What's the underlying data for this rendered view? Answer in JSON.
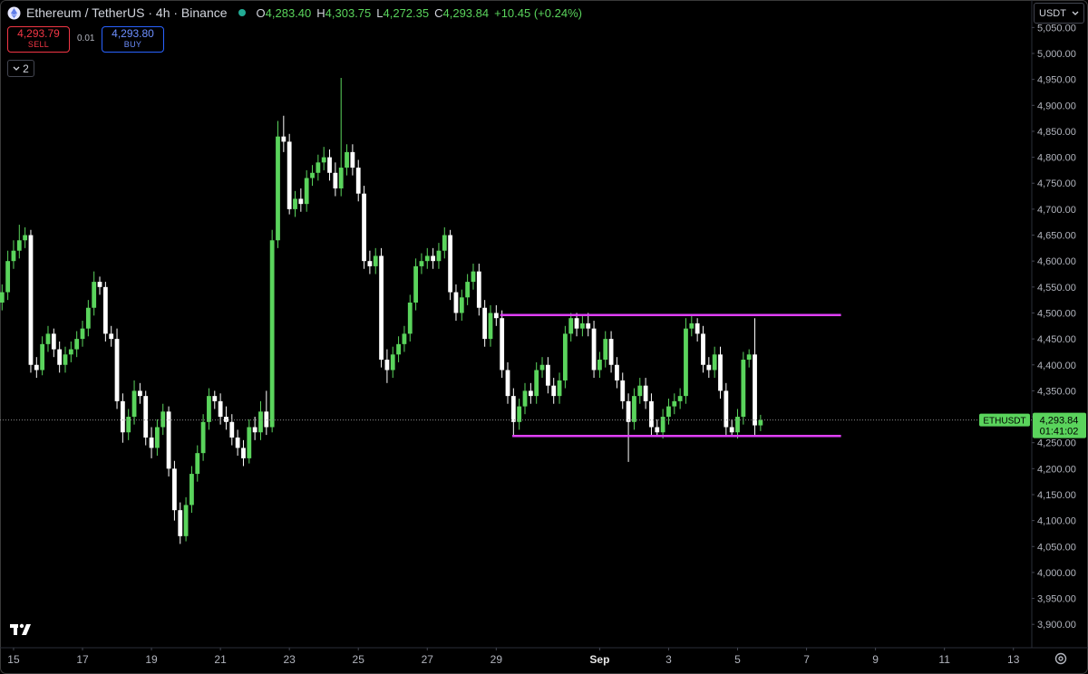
{
  "header": {
    "symbol_title": "Ethereum / TetherUS · 4h · Binance",
    "ohlc": [
      {
        "key": "O",
        "value": "4,283.40"
      },
      {
        "key": "H",
        "value": "4,303.75"
      },
      {
        "key": "L",
        "value": "4,272.35"
      },
      {
        "key": "C",
        "value": "4,293.84"
      }
    ],
    "change": "+10.45 (+0.24%)"
  },
  "trade": {
    "sell_price": "4,293.79",
    "sell_label": "SELL",
    "spread": "0.01",
    "buy_price": "4,293.80",
    "buy_label": "BUY"
  },
  "indicators_toggle": "2",
  "currency": "USDT",
  "chart_data": {
    "type": "candlestick",
    "series": [
      {
        "name": "ETHUSDT",
        "up_color": "#5ad45c",
        "down_color": "#ffffff",
        "open": [
          4520,
          4540,
          4600,
          4620,
          4640,
          4650,
          4400,
          4390,
          4440,
          4460,
          4430,
          4400,
          4420,
          4430,
          4450,
          4470,
          4510,
          4560,
          4550,
          4460,
          4450,
          4330,
          4270,
          4300,
          4350,
          4340,
          4260,
          4240,
          4280,
          4310,
          4200,
          4120,
          4070,
          4130,
          4190,
          4230,
          4290,
          4340,
          4330,
          4300,
          4290,
          4260,
          4240,
          4220,
          4280,
          4270,
          4310,
          4280,
          4640,
          4840,
          4830,
          4700,
          4720,
          4710,
          4760,
          4770,
          4790,
          4800,
          4770,
          4740,
          4780,
          4810,
          4780,
          4730,
          4600,
          4590,
          4610,
          4410,
          4390,
          4420,
          4440,
          4460,
          4520,
          4590,
          4600,
          4610,
          4600,
          4620,
          4650,
          4540,
          4500,
          4530,
          4560,
          4580,
          4510,
          4450,
          4500,
          4490,
          4390,
          4340,
          4290,
          4320,
          4350,
          4340,
          4390,
          4400,
          4360,
          4340,
          4370,
          4460,
          4490,
          4470,
          4480,
          4470,
          4390,
          4410,
          4450,
          4400,
          4370,
          4330,
          4290,
          4340,
          4360,
          4330,
          4280,
          4270,
          4300,
          4320,
          4330,
          4340,
          4470,
          4480,
          4460,
          4400,
          4390,
          4420,
          4350,
          4280,
          4270,
          4300,
          4410,
          4420,
          4283.4
        ],
        "high": [
          4555,
          4620,
          4640,
          4670,
          4665,
          4660,
          4415,
          4455,
          4475,
          4470,
          4445,
          4435,
          4445,
          4465,
          4485,
          4525,
          4580,
          4570,
          4560,
          4475,
          4470,
          4345,
          4315,
          4370,
          4365,
          4350,
          4280,
          4295,
          4325,
          4320,
          4215,
          4135,
          4145,
          4205,
          4245,
          4305,
          4355,
          4350,
          4345,
          4320,
          4305,
          4275,
          4255,
          4295,
          4300,
          4330,
          4350,
          4660,
          4870,
          4880,
          4845,
          4735,
          4740,
          4775,
          4785,
          4805,
          4820,
          4815,
          4790,
          4953,
          4825,
          4825,
          4795,
          4745,
          4620,
          4625,
          4625,
          4430,
          4435,
          4455,
          4475,
          4535,
          4605,
          4615,
          4625,
          4625,
          4635,
          4665,
          4660,
          4555,
          4545,
          4575,
          4595,
          4595,
          4525,
          4515,
          4515,
          4505,
          4405,
          4355,
          4335,
          4365,
          4365,
          4405,
          4415,
          4415,
          4375,
          4385,
          4475,
          4500,
          4500,
          4495,
          4500,
          4485,
          4425,
          4465,
          4465,
          4415,
          4385,
          4345,
          4355,
          4375,
          4375,
          4345,
          4295,
          4315,
          4335,
          4345,
          4355,
          4490,
          4495,
          4490,
          4475,
          4415,
          4435,
          4435,
          4365,
          4295,
          4315,
          4425,
          4430,
          4490,
          4303.75
        ],
        "low": [
          4505,
          4525,
          4585,
          4605,
          4625,
          4385,
          4375,
          4380,
          4425,
          4415,
          4385,
          4385,
          4405,
          4415,
          4435,
          4455,
          4495,
          4535,
          4445,
          4435,
          4315,
          4250,
          4255,
          4285,
          4325,
          4245,
          4220,
          4225,
          4265,
          4185,
          4100,
          4055,
          4060,
          4115,
          4175,
          4215,
          4275,
          4315,
          4285,
          4275,
          4245,
          4225,
          4205,
          4210,
          4255,
          4255,
          4265,
          4270,
          4625,
          4810,
          4690,
          4685,
          4695,
          4695,
          4745,
          4755,
          4775,
          4755,
          4725,
          4725,
          4765,
          4765,
          4715,
          4585,
          4575,
          4575,
          4395,
          4365,
          4375,
          4405,
          4425,
          4445,
          4505,
          4575,
          4585,
          4585,
          4585,
          4605,
          4525,
          4485,
          4485,
          4515,
          4545,
          4495,
          4435,
          4435,
          4475,
          4375,
          4325,
          4262,
          4275,
          4305,
          4325,
          4325,
          4375,
          4345,
          4325,
          4325,
          4355,
          4445,
          4455,
          4455,
          4455,
          4375,
          4375,
          4395,
          4385,
          4355,
          4315,
          4213,
          4275,
          4325,
          4315,
          4265,
          4262,
          4258,
          4285,
          4305,
          4315,
          4325,
          4455,
          4445,
          4385,
          4375,
          4375,
          4335,
          4265,
          4262,
          4258,
          4285,
          4395,
          4262,
          4272.35
        ],
        "close": [
          4540,
          4600,
          4620,
          4640,
          4650,
          4400,
          4390,
          4440,
          4460,
          4430,
          4400,
          4420,
          4430,
          4450,
          4470,
          4510,
          4560,
          4550,
          4460,
          4450,
          4330,
          4270,
          4300,
          4350,
          4340,
          4260,
          4240,
          4280,
          4310,
          4200,
          4120,
          4070,
          4130,
          4190,
          4230,
          4290,
          4340,
          4330,
          4300,
          4290,
          4260,
          4240,
          4220,
          4280,
          4270,
          4310,
          4280,
          4640,
          4840,
          4830,
          4700,
          4720,
          4710,
          4760,
          4770,
          4790,
          4800,
          4770,
          4740,
          4780,
          4810,
          4780,
          4730,
          4600,
          4590,
          4610,
          4410,
          4390,
          4420,
          4440,
          4460,
          4520,
          4590,
          4600,
          4610,
          4600,
          4620,
          4650,
          4540,
          4500,
          4530,
          4560,
          4580,
          4510,
          4450,
          4500,
          4490,
          4390,
          4340,
          4290,
          4320,
          4350,
          4340,
          4390,
          4400,
          4360,
          4340,
          4370,
          4460,
          4490,
          4470,
          4480,
          4470,
          4390,
          4410,
          4450,
          4400,
          4370,
          4330,
          4290,
          4340,
          4360,
          4330,
          4280,
          4270,
          4300,
          4320,
          4330,
          4340,
          4470,
          4480,
          4460,
          4400,
          4390,
          4420,
          4350,
          4280,
          4270,
          4300,
          4410,
          4420,
          4283.4,
          4293.84
        ]
      }
    ],
    "xlim": [
      -0.36,
      179.2
    ],
    "xticks": [
      {
        "value": 2,
        "label": "15"
      },
      {
        "value": 14,
        "label": "17"
      },
      {
        "value": 26,
        "label": "19"
      },
      {
        "value": 38,
        "label": "21"
      },
      {
        "value": 50,
        "label": "23"
      },
      {
        "value": 62,
        "label": "25"
      },
      {
        "value": 74,
        "label": "27"
      },
      {
        "value": 86,
        "label": "29"
      },
      {
        "value": 104,
        "label": "Sep"
      },
      {
        "value": 116,
        "label": "3"
      },
      {
        "value": 128,
        "label": "5"
      },
      {
        "value": 140,
        "label": "7"
      },
      {
        "value": 152,
        "label": "9"
      },
      {
        "value": 164,
        "label": "11"
      },
      {
        "value": 176,
        "label": "13"
      }
    ],
    "ylim": [
      3855,
      5103
    ],
    "yticks": [
      {
        "value": 3900,
        "label": "3,900.00"
      },
      {
        "value": 3950,
        "label": "3,950.00"
      },
      {
        "value": 4000,
        "label": "4,000.00"
      },
      {
        "value": 4050,
        "label": "4,050.00"
      },
      {
        "value": 4100,
        "label": "4,100.00"
      },
      {
        "value": 4150,
        "label": "4,150.00"
      },
      {
        "value": 4200,
        "label": "4,200.00"
      },
      {
        "value": 4250,
        "label": "4,250.00"
      },
      {
        "value": 4300,
        "label": "4,300.00"
      },
      {
        "value": 4350,
        "label": "4,350.00"
      },
      {
        "value": 4400,
        "label": "4,400.00"
      },
      {
        "value": 4450,
        "label": "4,450.00"
      },
      {
        "value": 4500,
        "label": "4,500.00"
      },
      {
        "value": 4550,
        "label": "4,550.00"
      },
      {
        "value": 4600,
        "label": "4,600.00"
      },
      {
        "value": 4650,
        "label": "4,650.00"
      },
      {
        "value": 4700,
        "label": "4,700.00"
      },
      {
        "value": 4750,
        "label": "4,750.00"
      },
      {
        "value": 4800,
        "label": "4,800.00"
      },
      {
        "value": 4850,
        "label": "4,850.00"
      },
      {
        "value": 4900,
        "label": "4,900.00"
      },
      {
        "value": 4950,
        "label": "4,950.00"
      },
      {
        "value": 5000,
        "label": "5,000.00"
      },
      {
        "value": 5050,
        "label": "5,050.00"
      }
    ],
    "grid": false,
    "last_price": {
      "value": 4293.84,
      "label": "4,293.84"
    },
    "countdown": "01:41:02",
    "shapes": [
      {
        "type": "hline",
        "price": 4496,
        "start": 86.7,
        "end": 146,
        "color": "#e040fb"
      },
      {
        "type": "hline",
        "price": 4263,
        "start": 88.8,
        "end": 146,
        "color": "#e040fb"
      }
    ]
  }
}
